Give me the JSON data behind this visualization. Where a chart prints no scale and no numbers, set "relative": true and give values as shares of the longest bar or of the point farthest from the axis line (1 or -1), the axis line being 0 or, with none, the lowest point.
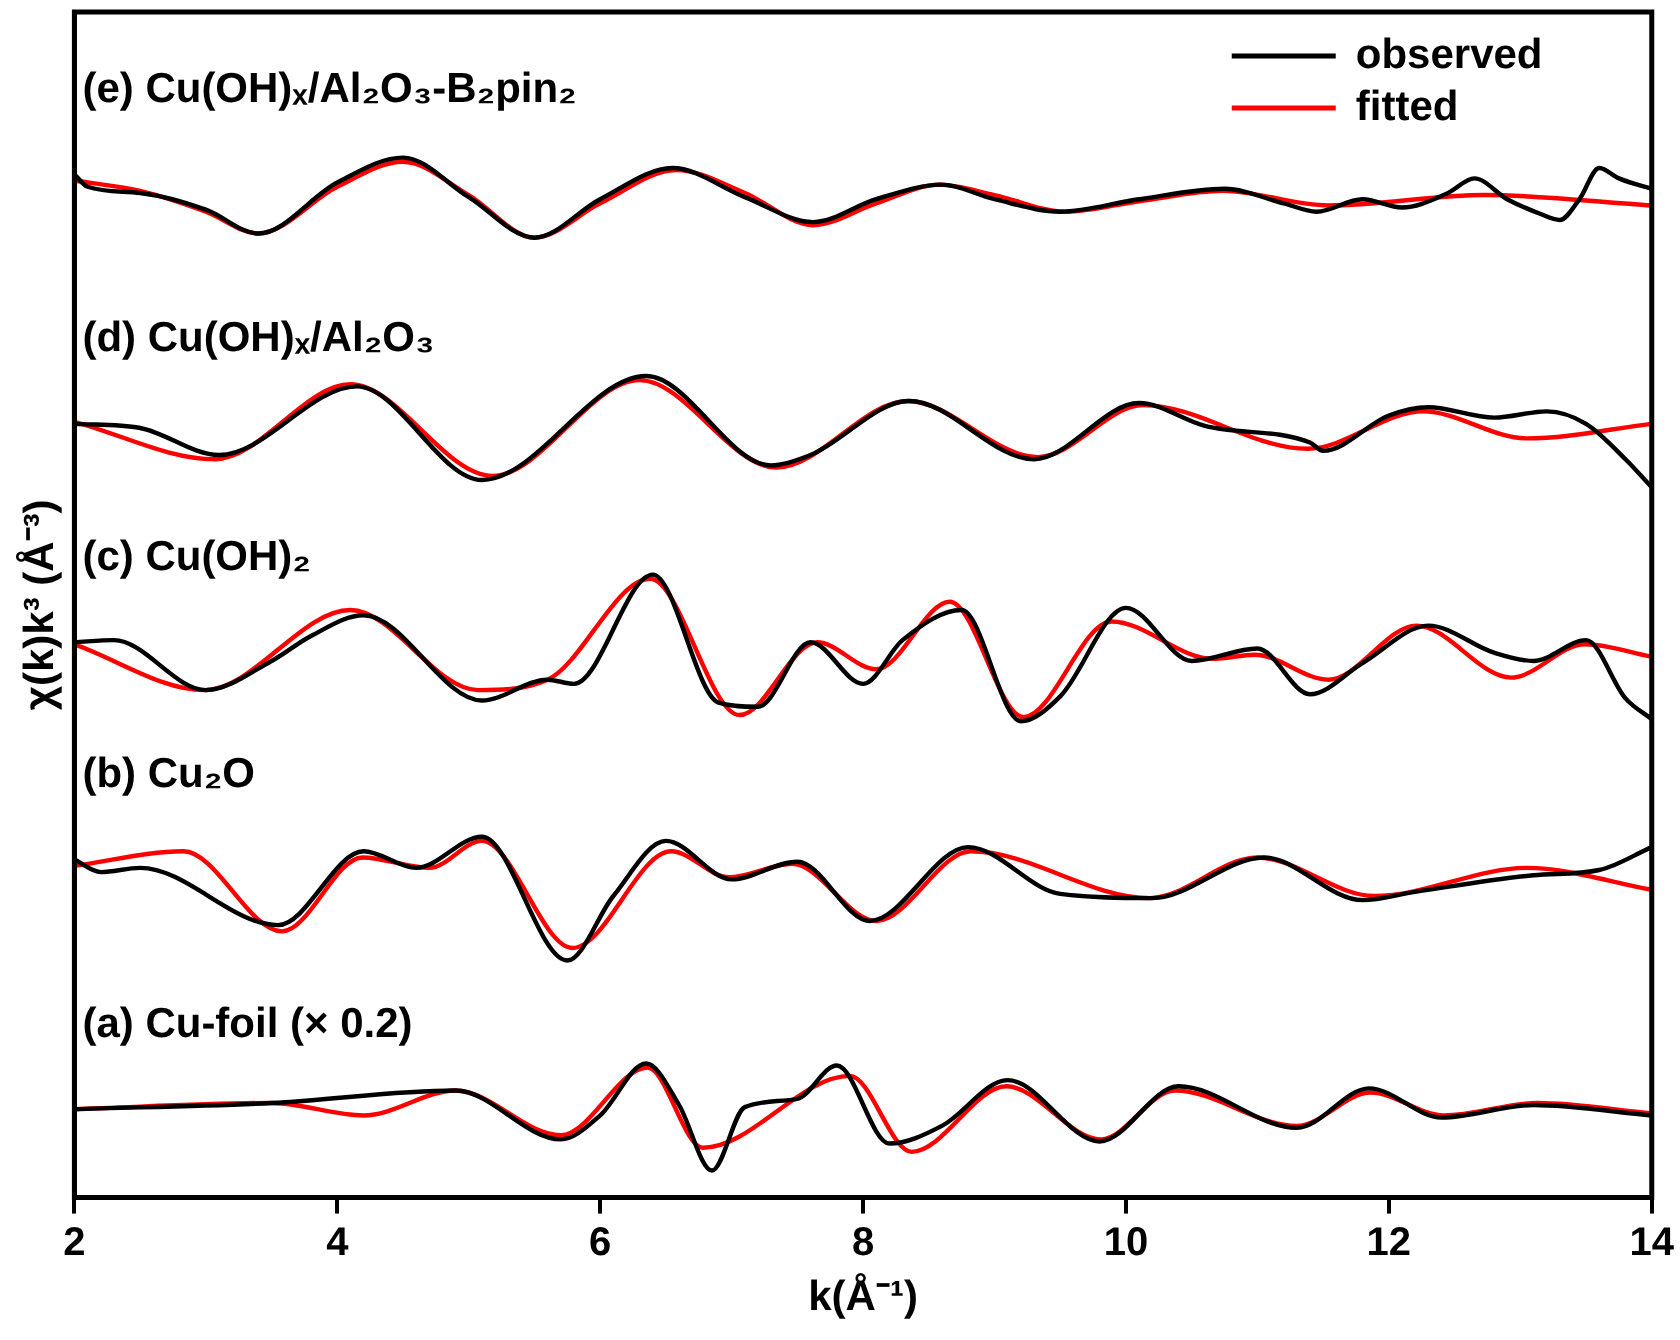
{
  "chart_data": {
    "type": "line",
    "relative": true,
    "xlabel": "k(Å⁻¹)",
    "ylabel": "χ(k)k³ (Å⁻³)",
    "xlim": [
      2,
      14
    ],
    "xticks": [
      2,
      4,
      6,
      8,
      10,
      12,
      14
    ],
    "tick_labels": "x",
    "grid": false,
    "legend": "top right",
    "annotations": [
      "(e) Cu(OH)ₓ/Al₂O₃-B₂pin₂",
      "(d) Cu(OH)ₓ/Al₂O₃",
      "(c) Cu(OH)₂",
      "(b) Cu₂O",
      "(a) Cu-foil (× 0.2)"
    ],
    "series": [
      {
        "name": "observed",
        "color": "#000000",
        "x": [
          2.0,
          2.1,
          2.5,
          3.0,
          3.4,
          4.0,
          4.5,
          5.0,
          5.5,
          6.0,
          6.55,
          7.1,
          7.62,
          8.1,
          8.6,
          9.0,
          9.5,
          10.1,
          10.75,
          11.2,
          11.45,
          11.8,
          12.1,
          12.45,
          12.65,
          12.9,
          13.15,
          13.3,
          13.45,
          13.6,
          13.75,
          14.0
        ],
        "values": [
          0.984,
          0.972,
          0.966,
          0.95,
          0.927,
          0.976,
          1.0,
          0.962,
          0.923,
          0.96,
          0.99,
          0.962,
          0.938,
          0.96,
          0.974,
          0.96,
          0.948,
          0.96,
          0.97,
          0.956,
          0.948,
          0.96,
          0.952,
          0.966,
          0.98,
          0.96,
          0.946,
          0.94,
          0.96,
          0.99,
          0.98,
          0.97
        ]
      },
      {
        "name": "fitted",
        "color": "#ff0000",
        "x": [
          2.0,
          2.5,
          3.0,
          3.4,
          4.0,
          4.5,
          5.0,
          5.5,
          6.0,
          6.58,
          7.1,
          7.62,
          8.1,
          8.58,
          9.0,
          9.54,
          10.1,
          10.74,
          11.54,
          12.73,
          14.0
        ],
        "values": [
          0.978,
          0.968,
          0.948,
          0.927,
          0.972,
          0.996,
          0.964,
          0.923,
          0.956,
          0.988,
          0.966,
          0.935,
          0.956,
          0.974,
          0.964,
          0.948,
          0.958,
          0.968,
          0.954,
          0.964,
          0.954
        ]
      },
      {
        "color": "#000000",
        "x": [
          2.0,
          2.5,
          3.1,
          4.15,
          5.1,
          6.35,
          7.3,
          7.6,
          8.35,
          9.3,
          10.1,
          10.6,
          11.4,
          11.5,
          12.0,
          12.3,
          12.8,
          13.2,
          13.5,
          13.8,
          14.0
        ],
        "values": [
          0.744,
          0.74,
          0.714,
          0.78,
          0.69,
          0.79,
          0.704,
          0.714,
          0.766,
          0.71,
          0.764,
          0.742,
          0.726,
          0.718,
          0.752,
          0.76,
          0.75,
          0.756,
          0.744,
          0.71,
          0.683
        ]
      },
      {
        "color": "#ff0000",
        "x": [
          2.0,
          3.07,
          4.1,
          5.18,
          6.3,
          7.34,
          8.34,
          9.33,
          10.13,
          11.38,
          12.26,
          13.05,
          14.0
        ],
        "values": [
          0.746,
          0.71,
          0.782,
          0.694,
          0.786,
          0.702,
          0.766,
          0.712,
          0.762,
          0.72,
          0.756,
          0.73,
          0.744
        ]
      },
      {
        "color": "#000000",
        "x": [
          2.0,
          2.3,
          3.0,
          3.5,
          3.8,
          4.2,
          5.1,
          5.6,
          5.8,
          6.4,
          6.9,
          7.2,
          7.6,
          8.0,
          8.3,
          8.75,
          9.2,
          9.5,
          10.0,
          10.5,
          11.0,
          11.4,
          11.8,
          12.3,
          12.8,
          13.1,
          13.5,
          13.8,
          14.0
        ],
        "values": [
          0.534,
          0.536,
          0.488,
          0.516,
          0.54,
          0.56,
          0.478,
          0.498,
          0.494,
          0.599,
          0.476,
          0.472,
          0.534,
          0.494,
          0.536,
          0.565,
          0.458,
          0.482,
          0.567,
          0.516,
          0.528,
          0.484,
          0.514,
          0.55,
          0.524,
          0.516,
          0.536,
          0.48,
          0.46
        ]
      },
      {
        "color": "#ff0000",
        "x": [
          2.0,
          2.99,
          4.1,
          5.07,
          5.6,
          6.38,
          7.06,
          7.65,
          8.1,
          8.66,
          9.22,
          9.89,
          10.66,
          10.98,
          11.54,
          12.21,
          12.93,
          13.49,
          14.0
        ],
        "values": [
          0.532,
          0.488,
          0.565,
          0.488,
          0.498,
          0.595,
          0.464,
          0.534,
          0.508,
          0.573,
          0.462,
          0.554,
          0.518,
          0.522,
          0.498,
          0.55,
          0.5,
          0.532,
          0.52
        ]
      },
      {
        "color": "#000000",
        "x": [
          2.0,
          2.2,
          2.5,
          3.55,
          4.2,
          4.6,
          5.1,
          5.75,
          6.1,
          6.5,
          7.0,
          7.5,
          8.05,
          8.8,
          9.5,
          10.2,
          11.05,
          11.8,
          12.2,
          13.1,
          13.6,
          14.0
        ],
        "values": [
          0.325,
          0.313,
          0.317,
          0.262,
          0.333,
          0.317,
          0.347,
          0.228,
          0.29,
          0.343,
          0.306,
          0.323,
          0.266,
          0.337,
          0.292,
          0.288,
          0.327,
          0.286,
          0.294,
          0.31,
          0.315,
          0.337
        ]
      },
      {
        "color": "#ff0000",
        "x": [
          2.0,
          2.83,
          3.58,
          4.19,
          4.7,
          5.1,
          5.79,
          6.54,
          6.98,
          7.46,
          8.1,
          8.82,
          10.18,
          11.0,
          11.89,
          13.05,
          14.0
        ],
        "values": [
          0.319,
          0.333,
          0.256,
          0.327,
          0.317,
          0.343,
          0.24,
          0.333,
          0.308,
          0.321,
          0.266,
          0.333,
          0.288,
          0.327,
          0.29,
          0.317,
          0.296
        ]
      },
      {
        "color": "#000000",
        "x": [
          2.0,
          3.5,
          4.9,
          5.7,
          6.0,
          6.35,
          6.6,
          6.85,
          7.1,
          7.5,
          7.8,
          8.2,
          8.6,
          9.1,
          9.8,
          10.4,
          11.3,
          11.85,
          12.4,
          13.1,
          14.0
        ],
        "values": [
          0.085,
          0.091,
          0.103,
          0.056,
          0.079,
          0.129,
          0.089,
          0.026,
          0.087,
          0.095,
          0.127,
          0.052,
          0.069,
          0.113,
          0.054,
          0.107,
          0.067,
          0.105,
          0.077,
          0.089,
          0.079
        ]
      },
      {
        "color": "#ff0000",
        "x": [
          2.0,
          3.5,
          4.2,
          4.9,
          5.7,
          6.36,
          6.78,
          7.9,
          8.37,
          9.09,
          9.81,
          10.37,
          11.3,
          11.86,
          12.42,
          13.13,
          14.0
        ],
        "values": [
          0.085,
          0.091,
          0.079,
          0.103,
          0.06,
          0.125,
          0.048,
          0.117,
          0.044,
          0.107,
          0.056,
          0.103,
          0.069,
          0.101,
          0.079,
          0.091,
          0.081
        ]
      }
    ]
  }
}
